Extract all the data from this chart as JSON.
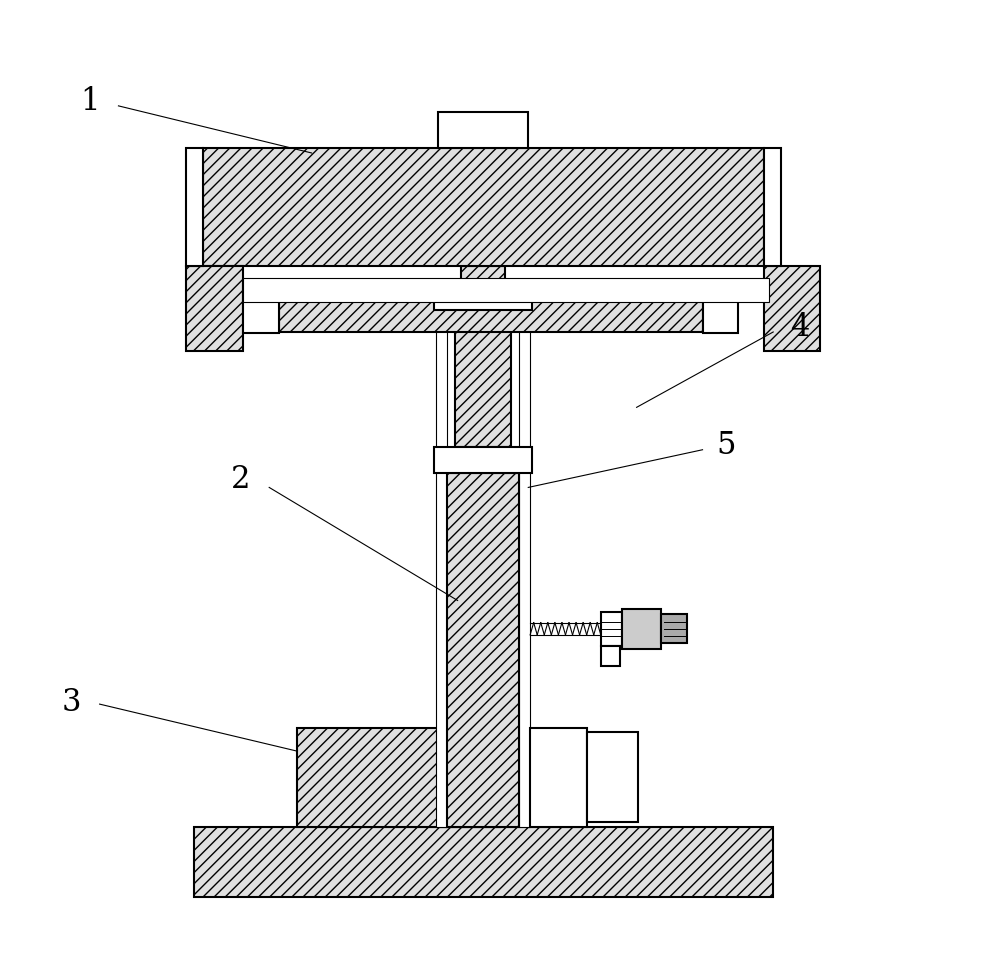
{
  "bg_color": "#ffffff",
  "line_color": "#000000",
  "hatch_color": "#555555",
  "line_width": 1.5,
  "thin_line": 0.8,
  "fig_width": 10.0,
  "fig_height": 9.56,
  "label_fontsize": 22
}
